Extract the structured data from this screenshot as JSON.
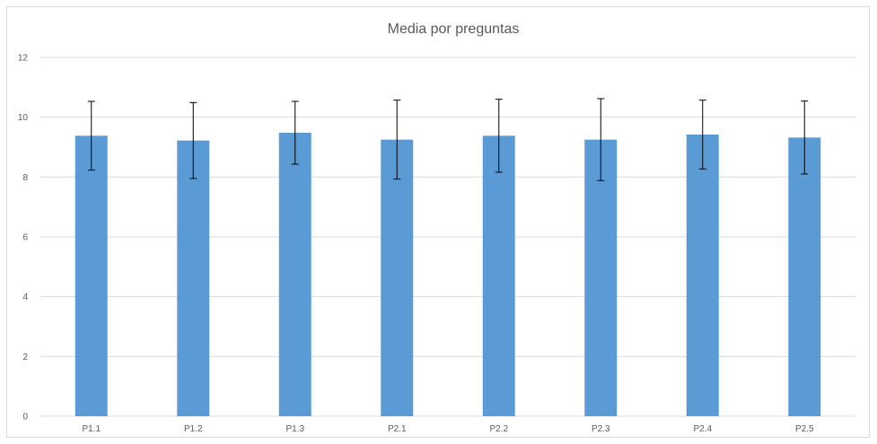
{
  "chart_data": {
    "type": "bar",
    "title": "Media por preguntas",
    "xlabel": "",
    "ylabel": "",
    "categories": [
      "P1.1",
      "P1.2",
      "P1.3",
      "P2.1",
      "P2.2",
      "P2.3",
      "P2.4",
      "P2.5"
    ],
    "values": [
      9.38,
      9.22,
      9.48,
      9.25,
      9.38,
      9.25,
      9.42,
      9.32
    ],
    "error_bars": [
      1.15,
      1.27,
      1.05,
      1.32,
      1.22,
      1.37,
      1.15,
      1.22
    ],
    "ylim": [
      0,
      12
    ],
    "yticks": [
      0,
      2,
      4,
      6,
      8,
      10,
      12
    ],
    "grid": true,
    "legend": "none",
    "colors": {
      "bar": "#5b9bd5",
      "grid": "#d9d9d9",
      "error_bar": "#000000",
      "text": "#595959"
    }
  }
}
